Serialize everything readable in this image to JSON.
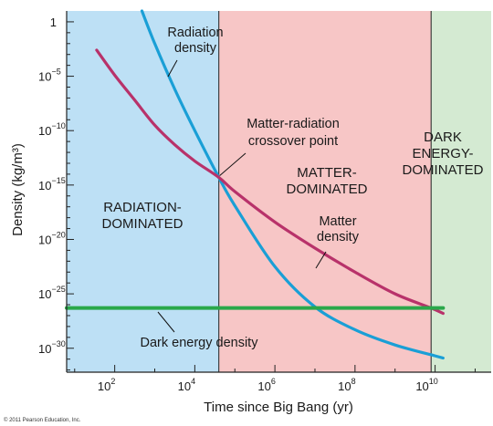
{
  "chart_data": {
    "type": "line",
    "xlabel": "Time since Big Bang (yr)",
    "ylabel": "Density (kg/m³)",
    "x_scale": "log",
    "y_scale": "log",
    "x_ticks": [
      {
        "base": "10",
        "exp": "2"
      },
      {
        "base": "10",
        "exp": "4"
      },
      {
        "base": "10",
        "exp": "6"
      },
      {
        "base": "10",
        "exp": "8"
      },
      {
        "base": "10",
        "exp": "10"
      }
    ],
    "y_ticks": [
      {
        "base": "1",
        "exp": ""
      },
      {
        "base": "10",
        "exp": "−5"
      },
      {
        "base": "10",
        "exp": "−10"
      },
      {
        "base": "10",
        "exp": "−15"
      },
      {
        "base": "10",
        "exp": "−20"
      },
      {
        "base": "10",
        "exp": "−25"
      },
      {
        "base": "10",
        "exp": "−30"
      }
    ],
    "regions": [
      {
        "label_lines": [
          "RADIATION-",
          "DOMINATED"
        ],
        "color": "#bde0f5",
        "x_from_log": 0.8,
        "x_to_log": 4.6
      },
      {
        "label_lines": [
          "MATTER-",
          "DOMINATED"
        ],
        "color": "#f7c6c6",
        "x_from_log": 4.6,
        "x_to_log": 9.9
      },
      {
        "label_lines": [
          "DARK",
          "ENERGY-",
          "DOMINATED"
        ],
        "color": "#d4ead2",
        "x_from_log": 9.9,
        "x_to_log": 11.4
      }
    ],
    "series": [
      {
        "name": "Radiation density",
        "name_lines": [
          "Radiation",
          "density"
        ],
        "color": "#1a9fd6",
        "points": [
          [
            2.68,
            1.0
          ],
          [
            3.0,
            -2.0
          ],
          [
            3.5,
            -6.2
          ],
          [
            4.0,
            -10.0
          ],
          [
            4.6,
            -14.3
          ],
          [
            5.0,
            -16.9
          ],
          [
            6.0,
            -22.5
          ],
          [
            7.0,
            -26.2
          ],
          [
            8.0,
            -28.3
          ],
          [
            9.0,
            -29.7
          ],
          [
            10.0,
            -30.7
          ],
          [
            10.2,
            -30.9
          ]
        ]
      },
      {
        "name": "Matter density",
        "name_lines": [
          "Matter",
          "density"
        ],
        "color": "#b8326a",
        "points": [
          [
            1.55,
            -2.6
          ],
          [
            2.0,
            -4.9
          ],
          [
            2.5,
            -7.2
          ],
          [
            3.0,
            -9.5
          ],
          [
            3.5,
            -11.3
          ],
          [
            4.0,
            -12.8
          ],
          [
            4.6,
            -14.3
          ],
          [
            5.0,
            -15.6
          ],
          [
            6.0,
            -18.4
          ],
          [
            7.0,
            -20.8
          ],
          [
            8.0,
            -23.0
          ],
          [
            9.0,
            -25.0
          ],
          [
            9.9,
            -26.3
          ],
          [
            10.2,
            -26.8
          ]
        ]
      },
      {
        "name": "Dark energy density",
        "color": "#2aa84a",
        "points": [
          [
            0.8,
            -26.3
          ],
          [
            10.2,
            -26.3
          ]
        ]
      }
    ],
    "annotations": [
      {
        "text_lines": [
          "Matter-radiation",
          "crossover point"
        ],
        "points_to": [
          4.6,
          -14.3
        ]
      }
    ],
    "xlim_log": [
      0.8,
      11.4
    ],
    "ylim_log": [
      -32.2,
      1.0
    ],
    "grid": false
  },
  "credit": "© 2011 Pearson Education, Inc."
}
